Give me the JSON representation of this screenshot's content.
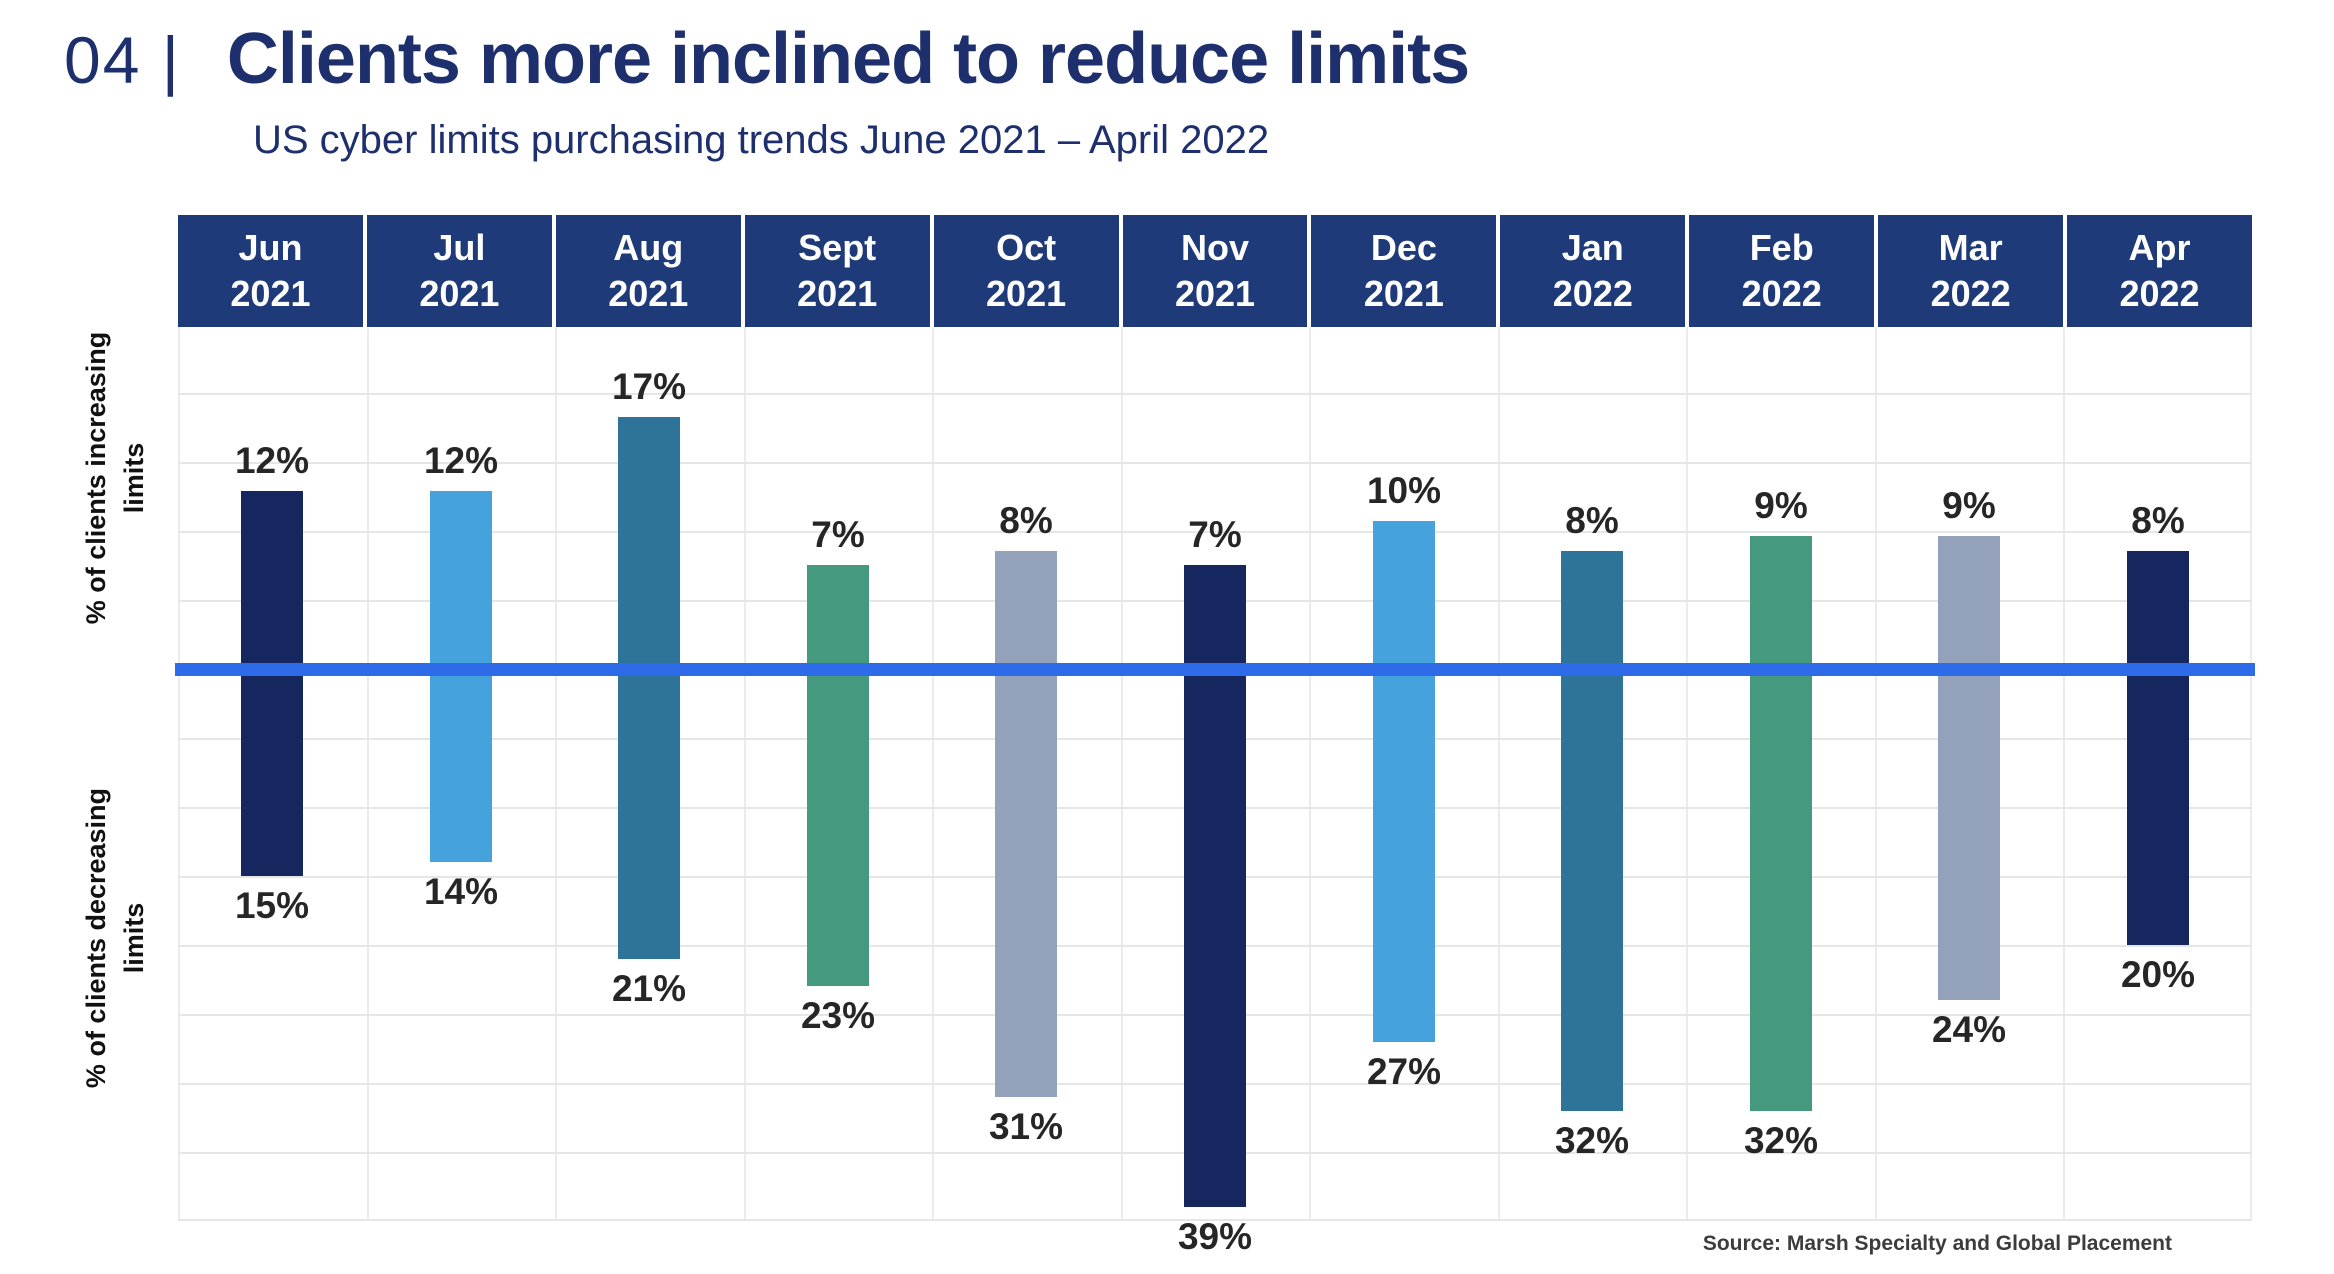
{
  "kicker": "04 |",
  "title": "Clients more inclined to reduce limits",
  "subtitle": "US cyber limits purchasing trends June 2021 – April 2022",
  "axis": {
    "increasing_label": "% of clients increasing limits",
    "decreasing_label": "% of clients decreasing limits"
  },
  "source": "Source: Marsh Specialty and Global Placement",
  "colors": {
    "title_navy": "#1E2F6D",
    "header_bg": "#1F3A78",
    "zero_line": "#2E6BE9",
    "label_text": "#262626",
    "navy_bar": "#16265E",
    "sky_bar": "#45A2DC",
    "steel_bar": "#2E7499",
    "teal_bar": "#45997F",
    "gray_bar": "#93A1BA"
  },
  "chart_data": {
    "type": "bar",
    "variant": "diverging-vertical",
    "title": "Clients more inclined to reduce limits",
    "subtitle": "US cyber limits purchasing trends June 2021 – April 2022",
    "categories": [
      "Jun 2021",
      "Jul 2021",
      "Aug 2021",
      "Sept 2021",
      "Oct 2021",
      "Nov 2021",
      "Dec 2021",
      "Jan 2022",
      "Feb 2022",
      "Mar 2022",
      "Apr 2022"
    ],
    "series": [
      {
        "name": "% of clients increasing limits",
        "direction": "up",
        "values": [
          12,
          12,
          17,
          7,
          8,
          7,
          10,
          8,
          9,
          9,
          8
        ],
        "unit": "%"
      },
      {
        "name": "% of clients decreasing limits",
        "direction": "down",
        "values": [
          15,
          14,
          21,
          23,
          31,
          39,
          27,
          32,
          32,
          24,
          20
        ],
        "unit": "%"
      }
    ],
    "bar_colors": [
      "#16265E",
      "#45A2DC",
      "#2E7499",
      "#45997F",
      "#93A1BA",
      "#16265E",
      "#45A2DC",
      "#2E7499",
      "#45997F",
      "#93A1BA",
      "#16265E"
    ],
    "grid": true,
    "legend": "none",
    "data_labels": true
  }
}
